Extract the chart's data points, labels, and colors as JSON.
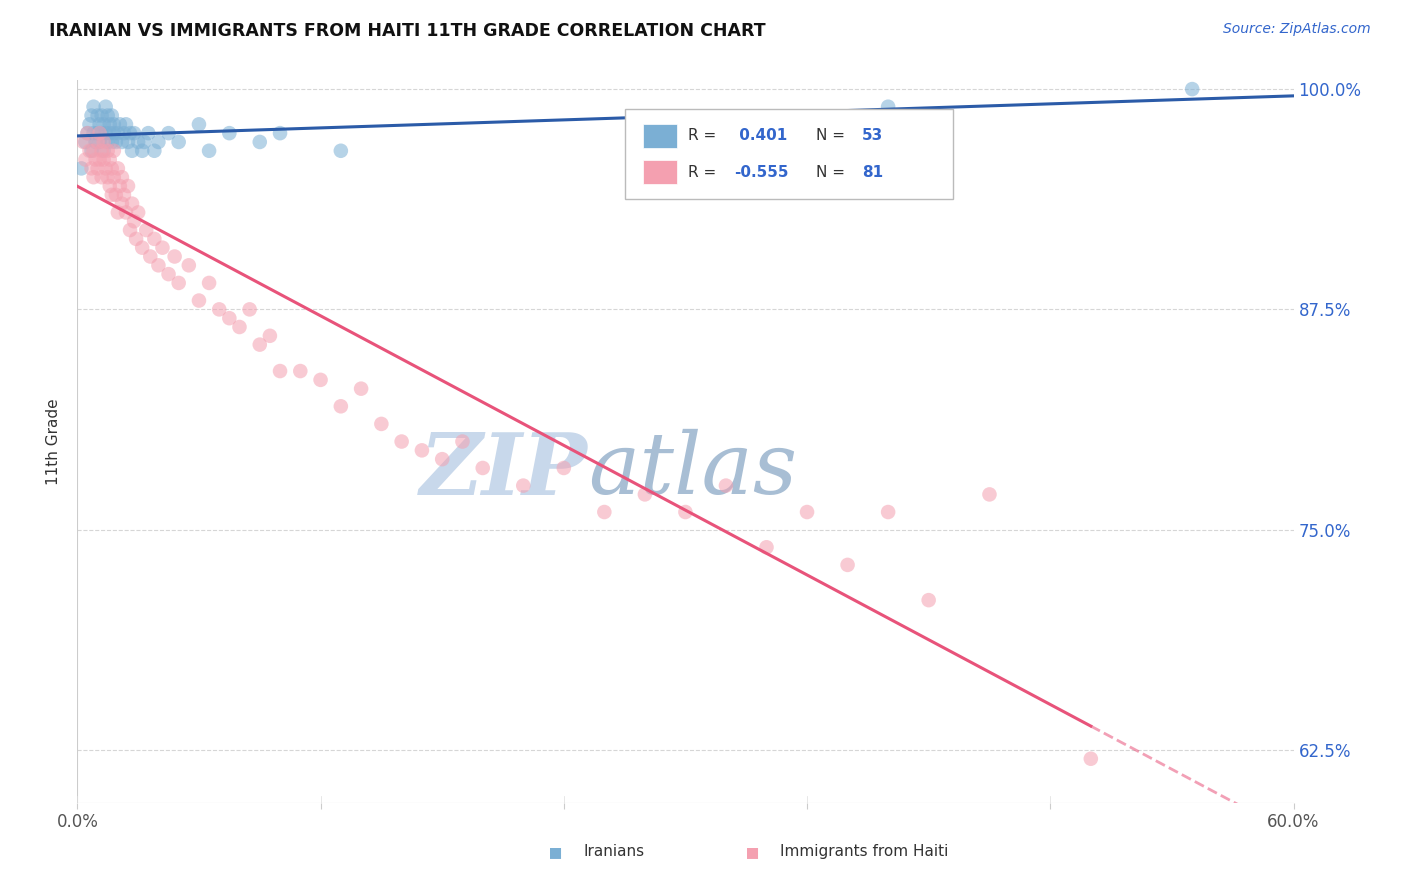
{
  "title": "IRANIAN VS IMMIGRANTS FROM HAITI 11TH GRADE CORRELATION CHART",
  "source_text": "Source: ZipAtlas.com",
  "ylabel": "11th Grade",
  "xmin": 0.0,
  "xmax": 0.6,
  "ymin": 0.595,
  "ymax": 1.005,
  "ytick_positions": [
    1.0,
    0.875,
    0.75,
    0.625
  ],
  "ytick_labels": [
    "100.0%",
    "87.5%",
    "75.0%",
    "62.5%"
  ],
  "xtick_positions": [
    0.0,
    0.12,
    0.24,
    0.36,
    0.48,
    0.6
  ],
  "xtick_labels": [
    "0.0%",
    "",
    "",
    "",
    "",
    "60.0%"
  ],
  "color_blue": "#7BAFD4",
  "color_pink": "#F4A0B0",
  "color_blue_line": "#2B5BA8",
  "color_pink_line": "#E8537A",
  "watermark_zip": "ZIP",
  "watermark_atlas": "atlas",
  "watermark_color_zip": "#C8D8E8",
  "watermark_color_atlas": "#A8C4D8",
  "iranians_x": [
    0.002,
    0.004,
    0.005,
    0.006,
    0.007,
    0.007,
    0.008,
    0.008,
    0.009,
    0.01,
    0.01,
    0.011,
    0.011,
    0.012,
    0.012,
    0.013,
    0.013,
    0.014,
    0.014,
    0.015,
    0.015,
    0.016,
    0.016,
    0.017,
    0.017,
    0.018,
    0.018,
    0.019,
    0.02,
    0.021,
    0.022,
    0.023,
    0.024,
    0.025,
    0.026,
    0.027,
    0.028,
    0.03,
    0.032,
    0.033,
    0.035,
    0.038,
    0.04,
    0.045,
    0.05,
    0.06,
    0.065,
    0.075,
    0.09,
    0.1,
    0.13,
    0.4,
    0.55
  ],
  "iranians_y": [
    0.955,
    0.97,
    0.975,
    0.98,
    0.965,
    0.985,
    0.975,
    0.99,
    0.97,
    0.975,
    0.985,
    0.97,
    0.98,
    0.975,
    0.985,
    0.965,
    0.98,
    0.975,
    0.99,
    0.97,
    0.985,
    0.975,
    0.98,
    0.97,
    0.985,
    0.975,
    0.98,
    0.97,
    0.975,
    0.98,
    0.97,
    0.975,
    0.98,
    0.97,
    0.975,
    0.965,
    0.975,
    0.97,
    0.965,
    0.97,
    0.975,
    0.965,
    0.97,
    0.975,
    0.97,
    0.98,
    0.965,
    0.975,
    0.97,
    0.975,
    0.965,
    0.99,
    1.0
  ],
  "haiti_x": [
    0.003,
    0.004,
    0.005,
    0.006,
    0.007,
    0.008,
    0.008,
    0.009,
    0.01,
    0.01,
    0.011,
    0.011,
    0.012,
    0.012,
    0.013,
    0.013,
    0.014,
    0.015,
    0.015,
    0.016,
    0.016,
    0.017,
    0.017,
    0.018,
    0.018,
    0.019,
    0.02,
    0.02,
    0.021,
    0.022,
    0.022,
    0.023,
    0.024,
    0.025,
    0.026,
    0.027,
    0.028,
    0.029,
    0.03,
    0.032,
    0.034,
    0.036,
    0.038,
    0.04,
    0.042,
    0.045,
    0.048,
    0.05,
    0.055,
    0.06,
    0.065,
    0.07,
    0.075,
    0.08,
    0.085,
    0.09,
    0.095,
    0.1,
    0.11,
    0.12,
    0.13,
    0.14,
    0.15,
    0.16,
    0.17,
    0.18,
    0.19,
    0.2,
    0.22,
    0.24,
    0.26,
    0.28,
    0.3,
    0.32,
    0.34,
    0.36,
    0.38,
    0.4,
    0.42,
    0.45,
    0.5
  ],
  "haiti_y": [
    0.97,
    0.96,
    0.975,
    0.965,
    0.955,
    0.965,
    0.95,
    0.96,
    0.955,
    0.97,
    0.96,
    0.975,
    0.965,
    0.95,
    0.96,
    0.97,
    0.955,
    0.965,
    0.95,
    0.96,
    0.945,
    0.955,
    0.94,
    0.95,
    0.965,
    0.94,
    0.955,
    0.93,
    0.945,
    0.935,
    0.95,
    0.94,
    0.93,
    0.945,
    0.92,
    0.935,
    0.925,
    0.915,
    0.93,
    0.91,
    0.92,
    0.905,
    0.915,
    0.9,
    0.91,
    0.895,
    0.905,
    0.89,
    0.9,
    0.88,
    0.89,
    0.875,
    0.87,
    0.865,
    0.875,
    0.855,
    0.86,
    0.84,
    0.84,
    0.835,
    0.82,
    0.83,
    0.81,
    0.8,
    0.795,
    0.79,
    0.8,
    0.785,
    0.775,
    0.785,
    0.76,
    0.77,
    0.76,
    0.775,
    0.74,
    0.76,
    0.73,
    0.76,
    0.71,
    0.77,
    0.62
  ]
}
